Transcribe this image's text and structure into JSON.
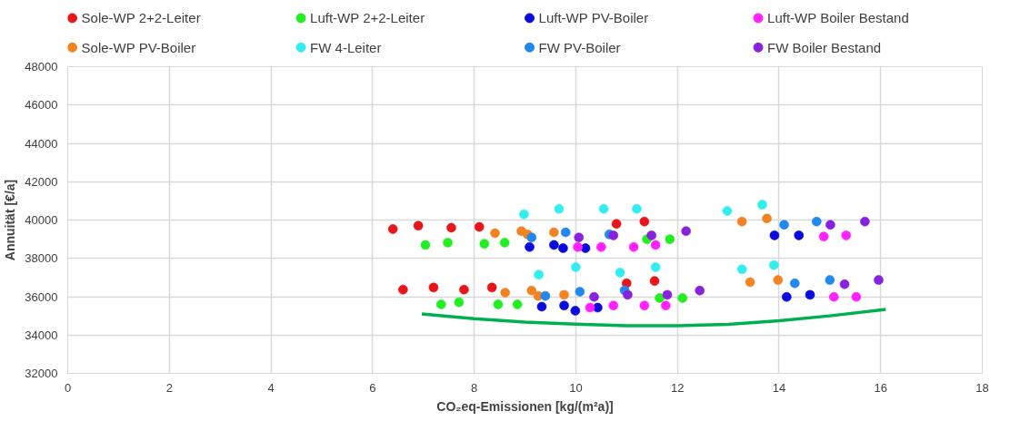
{
  "chart_data": {
    "type": "scatter",
    "xlabel": "CO₂eq-Emissionen [kg/(m²a)]",
    "ylabel": "Annuität [€/a]",
    "xlim": [
      0,
      18
    ],
    "xticks": [
      0,
      2,
      4,
      6,
      8,
      10,
      12,
      14,
      16,
      18
    ],
    "ylim": [
      32000,
      48000
    ],
    "yticks": [
      32000,
      34000,
      36000,
      38000,
      40000,
      42000,
      44000,
      46000,
      48000
    ],
    "grid": true,
    "legend": "top",
    "marker": "circle",
    "series": [
      {
        "name": "Sole-WP 2+2-Leiter",
        "color": "#e8161a",
        "x": [
          6.4,
          6.9,
          7.55,
          8.1,
          10.8,
          11.35,
          6.6,
          7.2,
          7.8,
          8.35,
          11.0,
          11.55
        ],
        "values": [
          39530,
          39700,
          39600,
          39640,
          39800,
          39920,
          36370,
          36480,
          36370,
          36480,
          36700,
          36820
        ]
      },
      {
        "name": "Luft-WP 2+2-Leiter",
        "color": "#22ee22",
        "x": [
          7.04,
          7.48,
          8.2,
          8.6,
          11.4,
          11.85,
          7.35,
          7.7,
          8.47,
          8.85,
          11.65,
          12.1
        ],
        "values": [
          38700,
          38820,
          38760,
          38820,
          39000,
          39000,
          35600,
          35710,
          35600,
          35600,
          35930,
          35930
        ]
      },
      {
        "name": "Luft-WP PV-Boiler",
        "color": "#0a0adf",
        "x": [
          9.09,
          9.57,
          9.75,
          10.19,
          13.91,
          14.39,
          9.33,
          9.77,
          9.99,
          10.43,
          14.15,
          14.61
        ],
        "values": [
          38590,
          38700,
          38530,
          38530,
          39200,
          39200,
          35480,
          35540,
          35270,
          35430,
          35990,
          36100
        ]
      },
      {
        "name": "Luft-WP Boiler Bestand",
        "color": "#ff22ff",
        "x": [
          10.04,
          10.5,
          11.14,
          11.57,
          14.88,
          15.32,
          10.28,
          10.74,
          11.35,
          11.77,
          15.08,
          15.52
        ],
        "values": [
          38590,
          38590,
          38590,
          38700,
          39140,
          39200,
          35430,
          35540,
          35540,
          35540,
          35990,
          35990
        ]
      },
      {
        "name": "Sole-WP PV-Boiler",
        "color": "#f28322",
        "x": [
          8.41,
          8.93,
          9.05,
          9.57,
          13.27,
          13.76,
          8.61,
          9.13,
          9.26,
          9.77,
          13.43,
          13.98
        ],
        "values": [
          39310,
          39420,
          39250,
          39360,
          39920,
          40080,
          36210,
          36320,
          36040,
          36100,
          36760,
          36870
        ]
      },
      {
        "name": "FW 4-Leiter",
        "color": "#33eeee",
        "x": [
          8.98,
          9.67,
          10.55,
          11.2,
          12.98,
          13.67,
          9.27,
          10.0,
          10.87,
          11.57,
          13.27,
          13.9
        ],
        "values": [
          40300,
          40580,
          40580,
          40580,
          40470,
          40800,
          37150,
          37540,
          37260,
          37540,
          37430,
          37650
        ]
      },
      {
        "name": "FW PV-Boiler",
        "color": "#2288ee",
        "x": [
          9.13,
          9.8,
          10.66,
          14.1,
          14.74,
          9.4,
          10.08,
          10.96,
          14.31,
          15.0
        ],
        "values": [
          39090,
          39360,
          39250,
          39750,
          39920,
          36040,
          36260,
          36330,
          36700,
          36870
        ]
      },
      {
        "name": "FW Boiler Bestand",
        "color": "#8822dd",
        "x": [
          10.06,
          10.74,
          11.49,
          12.17,
          15.01,
          15.69,
          10.36,
          11.02,
          11.8,
          12.44,
          15.29,
          15.96
        ],
        "values": [
          39090,
          39200,
          39200,
          39420,
          39750,
          39920,
          35990,
          36100,
          36100,
          36320,
          36650,
          36870
        ]
      },
      {
        "type": "line",
        "color": "#00b050",
        "marker": "none",
        "x": [
          6.97,
          8,
          9,
          10,
          11,
          12,
          13,
          14,
          15,
          16.1
        ],
        "values": [
          35100,
          34850,
          34680,
          34570,
          34490,
          34480,
          34560,
          34750,
          35000,
          35340
        ]
      }
    ]
  }
}
